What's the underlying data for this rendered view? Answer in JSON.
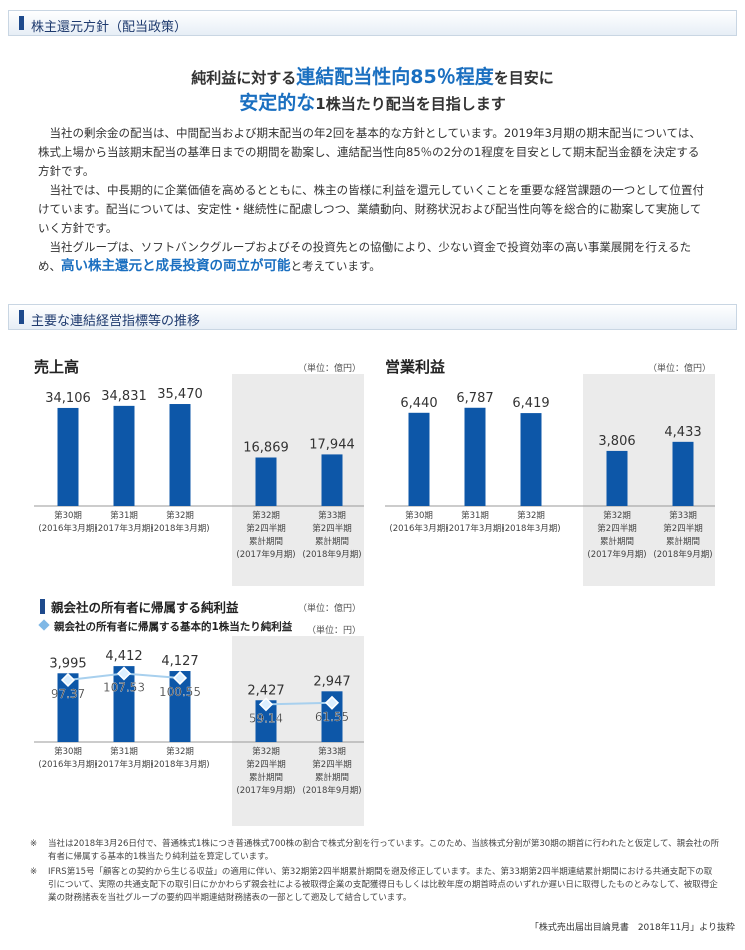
{
  "section1": {
    "title": "株主還元方針（配当政策）",
    "headline": {
      "l1_a": "純利益に対する",
      "l1_b": "連結配当性向85％程度",
      "l1_c": "を目安に",
      "l2_a": "安定的な",
      "l2_b": "1株当たり配当を目指します"
    },
    "p1": "当社の剰余金の配当は、中間配当および期末配当の年2回を基本的な方針としています。2019年3月期の期末配当については、株式上場から当該期末配当の基準日までの期間を勘案し、連結配当性向85％の2分の1程度を目安として期末配当金額を決定する方針です。",
    "p2": "当社では、中長期的に企業価値を高めるとともに、株主の皆様に利益を還元していくことを重要な経営課題の一つとして位置付けています。配当については、安定性・継続性に配慮しつつ、業績動向、財務状況および配当性向等を総合的に勘案して実施していく方針です。",
    "p3_a": "当社グループは、ソフトバンクグループおよびその投資先との協働により、少ない資金で投資効率の高い事業展開を行えるため、",
    "p3_hl": "高い株主還元と成長投資の両立が可能",
    "p3_b": "と考えています。"
  },
  "section2": {
    "title": "主要な連結経営指標等の推移"
  },
  "colors": {
    "bar": "#0d57a8",
    "shade": "#ebebeb",
    "accent": "#1a6fc0",
    "line": "#a8d0ee",
    "marker": "#7fb8e6"
  },
  "chart_data": [
    {
      "type": "bar",
      "title": "売上高",
      "unit": "（単位：億円）",
      "categories": [
        [
          "第30期",
          "(2016年3月期)"
        ],
        [
          "第31期",
          "(2017年3月期)"
        ],
        [
          "第32期",
          "(2018年3月期)"
        ],
        [
          "第32期",
          "第2四半期",
          "累計期間",
          "(2017年9月期)"
        ],
        [
          "第33期",
          "第2四半期",
          "累計期間",
          "(2018年9月期)"
        ]
      ],
      "values": [
        34106,
        34831,
        35470,
        16869,
        17944
      ],
      "labels": [
        "34,106",
        "34,831",
        "35,470",
        "16,869",
        "17,944"
      ],
      "shaded": [
        3,
        4
      ],
      "ylim": [
        0,
        40000
      ]
    },
    {
      "type": "bar",
      "title": "営業利益",
      "unit": "（単位：億円）",
      "categories": [
        [
          "第30期",
          "(2016年3月期)"
        ],
        [
          "第31期",
          "(2017年3月期)"
        ],
        [
          "第32期",
          "(2018年3月期)"
        ],
        [
          "第32期",
          "第2四半期",
          "累計期間",
          "(2017年9月期)"
        ],
        [
          "第33期",
          "第2四半期",
          "累計期間",
          "(2018年9月期)"
        ]
      ],
      "values": [
        6440,
        6787,
        6419,
        3806,
        4433
      ],
      "labels": [
        "6,440",
        "6,787",
        "6,419",
        "3,806",
        "4,433"
      ],
      "shaded": [
        3,
        4
      ],
      "ylim": [
        0,
        7600
      ]
    },
    {
      "type": "bar",
      "title": "親会社の所有者に帰属する純利益",
      "unit": "（単位：億円）",
      "title2": "親会社の所有者に帰属する基本的1株当たり純利益",
      "unit2": "（単位：円）",
      "categories": [
        [
          "第30期",
          "(2016年3月期)"
        ],
        [
          "第31期",
          "(2017年3月期)"
        ],
        [
          "第32期",
          "(2018年3月期)"
        ],
        [
          "第32期",
          "第2四半期",
          "累計期間",
          "(2017年9月期)"
        ],
        [
          "第33期",
          "第2四半期",
          "累計期間",
          "(2018年9月期)"
        ]
      ],
      "values": [
        3995,
        4412,
        4127,
        2427,
        2947
      ],
      "labels": [
        "3,995",
        "4,412",
        "4,127",
        "2,427",
        "2,947"
      ],
      "eps": [
        97.37,
        107.53,
        100.55,
        59.14,
        61.55
      ],
      "eps_labels": [
        "97.37",
        "107.53",
        "100.55",
        "59.14",
        "61.55"
      ],
      "shaded": [
        3,
        4
      ],
      "ylim": [
        0,
        5000
      ],
      "eps_ylim": [
        0,
        135
      ]
    }
  ],
  "notes": [
    {
      "mark": "※",
      "text": "当社は2018年3月26日付で、普通株式1株につき普通株式700株の割合で株式分割を行っています。このため、当該株式分割が第30期の期首に行われたと仮定して、親会社の所有者に帰属する基本的1株当たり純利益を算定しています。"
    },
    {
      "mark": "※",
      "text": "IFRS第15号「顧客との契約から生じる収益」の適用に伴い、第32期第2四半期累計期間を遡及修正しています。また、第33期第2四半期連結累計期間における共通支配下の取引について、実際の共通支配下の取引日にかかわらず親会社による被取得企業の支配獲得日もしくは比較年度の期首時点のいずれか遅い日に取得したものとみなして、被取得企業の財務諸表を当社グループの要約四半期連結財務諸表の一部として遡及して結合しています。"
    }
  ],
  "source": "「株式売出届出目論見書　2018年11月」より抜粋"
}
